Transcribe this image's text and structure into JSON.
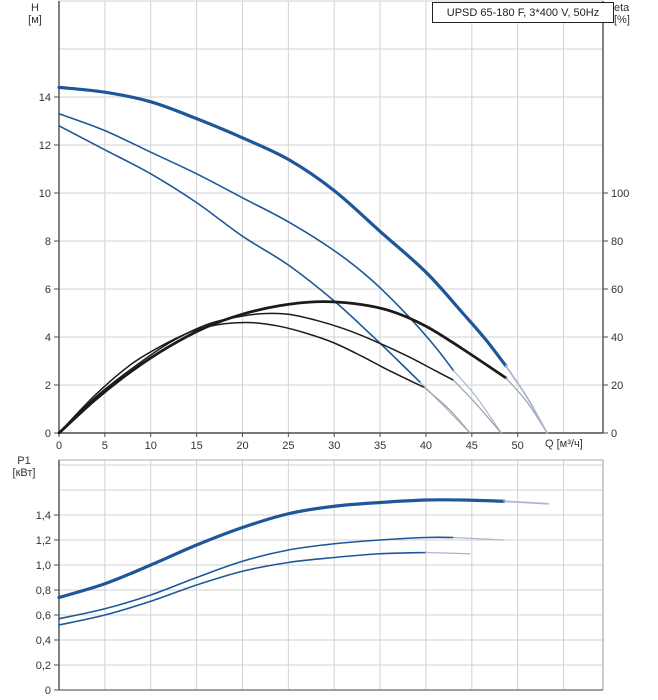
{
  "title_box": {
    "label": "UPSD 65-180 F, 3*400 V, 50Hz"
  },
  "labels": {
    "left_axis_top": {
      "name": "H",
      "unit": "[м]"
    },
    "right_axis_top": {
      "name": "eta",
      "unit": "[%]"
    },
    "x_axis": {
      "label": "Q [м³/ч]"
    },
    "left_axis_bottom": {
      "name": "P1",
      "unit": "[кВт]"
    }
  },
  "colors": {
    "curve_blue": "#1e5799",
    "curve_blue_light": "#a9b8d0",
    "curve_black": "#1b1b1b",
    "curve_black_light": "#9aa1ab",
    "grid": "#d2d2d2",
    "axis": "#4d4d4d",
    "frame_light": "#aaaaaa",
    "text": "#333333"
  },
  "chart_data": [
    {
      "id": "hq-eta-chart",
      "type": "line",
      "title": "UPSD 65-180 F, 3*400 V, 50Hz",
      "x_axis": {
        "label": "Q [м³/ч]",
        "min": 0,
        "max": 59.3,
        "grid_step": 5,
        "ticks": [
          0,
          5,
          10,
          15,
          20,
          25,
          30,
          35,
          40,
          45,
          50
        ],
        "tick_labels": [
          "0",
          "5",
          "10",
          "15",
          "20",
          "25",
          "30",
          "35",
          "40",
          "45",
          "50"
        ]
      },
      "y_left": {
        "label": "H [м]",
        "min": 0,
        "max": 18,
        "grid_step": 2,
        "ticks": [
          0,
          2,
          4,
          6,
          8,
          10,
          12,
          14
        ],
        "tick_labels": [
          "0",
          "2",
          "4",
          "6",
          "8",
          "10",
          "12",
          "14"
        ]
      },
      "y_right": {
        "label": "eta [%]",
        "min": 0,
        "max": 180,
        "ticks": [
          0,
          20,
          40,
          60,
          80,
          100
        ],
        "tick_labels": [
          "0",
          "20",
          "40",
          "60",
          "80",
          "100"
        ]
      },
      "series": [
        {
          "name": "H-Q curve speed 1",
          "axis": "left",
          "color": "blue",
          "width": 1.6,
          "solid": [
            [
              0,
              12.8
            ],
            [
              5,
              11.8
            ],
            [
              10,
              10.8
            ],
            [
              15,
              9.6
            ],
            [
              20,
              8.2
            ],
            [
              25,
              7.0
            ],
            [
              30,
              5.5
            ],
            [
              34,
              4.1
            ],
            [
              37,
              3.0
            ],
            [
              39.4,
              2.1
            ]
          ],
          "faded": [
            [
              42,
              1.1
            ],
            [
              44.8,
              0
            ]
          ]
        },
        {
          "name": "H-Q curve speed 2",
          "axis": "left",
          "color": "blue",
          "width": 1.6,
          "solid": [
            [
              0,
              13.3
            ],
            [
              5,
              12.6
            ],
            [
              10,
              11.7
            ],
            [
              15,
              10.8
            ],
            [
              20,
              9.8
            ],
            [
              25,
              8.8
            ],
            [
              30,
              7.6
            ],
            [
              34,
              6.4
            ],
            [
              38,
              4.9
            ],
            [
              41,
              3.6
            ],
            [
              43,
              2.6
            ]
          ],
          "faded": [
            [
              45.5,
              1.5
            ],
            [
              48.2,
              0
            ]
          ]
        },
        {
          "name": "eta curve speed 1",
          "axis": "right",
          "color": "black",
          "width": 1.5,
          "solid": [
            [
              0,
              0
            ],
            [
              4,
              16
            ],
            [
              8,
              29
            ],
            [
              12,
              38
            ],
            [
              15,
              43
            ],
            [
              18,
              45.5
            ],
            [
              21,
              46
            ],
            [
              24,
              44.5
            ],
            [
              27,
              41.5
            ],
            [
              30,
              37.5
            ],
            [
              33,
              32
            ],
            [
              36,
              26
            ],
            [
              39.8,
              19
            ]
          ],
          "faded": [
            [
              42.5,
              10
            ],
            [
              44.8,
              0
            ]
          ]
        },
        {
          "name": "eta curve speed 2",
          "axis": "right",
          "color": "black",
          "width": 1.5,
          "solid": [
            [
              0,
              0
            ],
            [
              4,
              15
            ],
            [
              8,
              27
            ],
            [
              12,
              37.5
            ],
            [
              16,
              45
            ],
            [
              19,
              48
            ],
            [
              22,
              49.7
            ],
            [
              25,
              49.5
            ],
            [
              28,
              47
            ],
            [
              31,
              43.5
            ],
            [
              34,
              39
            ],
            [
              38,
              32
            ],
            [
              41,
              26
            ],
            [
              43,
              22
            ]
          ],
          "faded": [
            [
              45.5,
              12
            ],
            [
              48.2,
              0
            ]
          ]
        },
        {
          "name": "eta curve speed 3",
          "axis": "right",
          "color": "black",
          "width": 2.8,
          "solid": [
            [
              0,
              0
            ],
            [
              4,
              14
            ],
            [
              8,
              26
            ],
            [
              12,
              36
            ],
            [
              16,
              44
            ],
            [
              20,
              49.5
            ],
            [
              24,
              53
            ],
            [
              28,
              54.7
            ],
            [
              32,
              54
            ],
            [
              36,
              51
            ],
            [
              40,
              44.5
            ],
            [
              44,
              35
            ],
            [
              48.7,
              23
            ]
          ],
          "faded": [
            [
              51,
              13
            ],
            [
              53.2,
              0
            ]
          ]
        },
        {
          "name": "H-Q curve speed 3",
          "axis": "left",
          "color": "blue",
          "width": 3.2,
          "solid": [
            [
              0,
              14.4
            ],
            [
              5,
              14.2
            ],
            [
              10,
              13.8
            ],
            [
              15,
              13.1
            ],
            [
              20,
              12.3
            ],
            [
              25,
              11.4
            ],
            [
              30,
              10.1
            ],
            [
              35,
              8.4
            ],
            [
              40,
              6.7
            ],
            [
              44,
              5.0
            ],
            [
              46.5,
              3.9
            ],
            [
              48.7,
              2.8
            ]
          ],
          "faded": [
            [
              51,
              1.5
            ],
            [
              53.2,
              0
            ]
          ]
        }
      ]
    },
    {
      "id": "p1-chart",
      "type": "line",
      "x_axis": {
        "min": 0,
        "max": 59.3,
        "grid_step": 5,
        "ticks": [],
        "tick_labels": []
      },
      "y_left": {
        "label": "P1 [кВт]",
        "min": 0,
        "max": 1.84,
        "grid_step": 0.2,
        "ticks": [
          0,
          0.2,
          0.4,
          0.6,
          0.8,
          1.0,
          1.2,
          1.4
        ],
        "tick_labels": [
          "0",
          "0,2",
          "0,4",
          "0,6",
          "0,8",
          "1,0",
          "1,2",
          "1,4"
        ]
      },
      "series": [
        {
          "name": "P1 curve speed 1",
          "axis": "left",
          "color": "blue",
          "width": 1.6,
          "solid": [
            [
              0,
              0.52
            ],
            [
              5,
              0.6
            ],
            [
              10,
              0.71
            ],
            [
              15,
              0.84
            ],
            [
              20,
              0.95
            ],
            [
              25,
              1.02
            ],
            [
              30,
              1.06
            ],
            [
              35,
              1.09
            ],
            [
              40,
              1.1
            ]
          ],
          "faded": [
            [
              44.8,
              1.09
            ]
          ]
        },
        {
          "name": "P1 curve speed 2",
          "axis": "left",
          "color": "blue",
          "width": 1.6,
          "solid": [
            [
              0,
              0.57
            ],
            [
              5,
              0.65
            ],
            [
              10,
              0.76
            ],
            [
              15,
              0.9
            ],
            [
              20,
              1.03
            ],
            [
              25,
              1.12
            ],
            [
              30,
              1.17
            ],
            [
              35,
              1.2
            ],
            [
              40,
              1.22
            ],
            [
              43,
              1.22
            ]
          ],
          "faded": [
            [
              48.5,
              1.2
            ]
          ]
        },
        {
          "name": "P1 curve speed 3",
          "axis": "left",
          "color": "blue",
          "width": 3.2,
          "solid": [
            [
              0,
              0.74
            ],
            [
              5,
              0.85
            ],
            [
              10,
              1.0
            ],
            [
              15,
              1.16
            ],
            [
              20,
              1.3
            ],
            [
              25,
              1.41
            ],
            [
              30,
              1.47
            ],
            [
              35,
              1.5
            ],
            [
              40,
              1.52
            ],
            [
              44,
              1.52
            ],
            [
              48.5,
              1.51
            ]
          ],
          "faded": [
            [
              53.3,
              1.49
            ]
          ]
        }
      ]
    }
  ]
}
